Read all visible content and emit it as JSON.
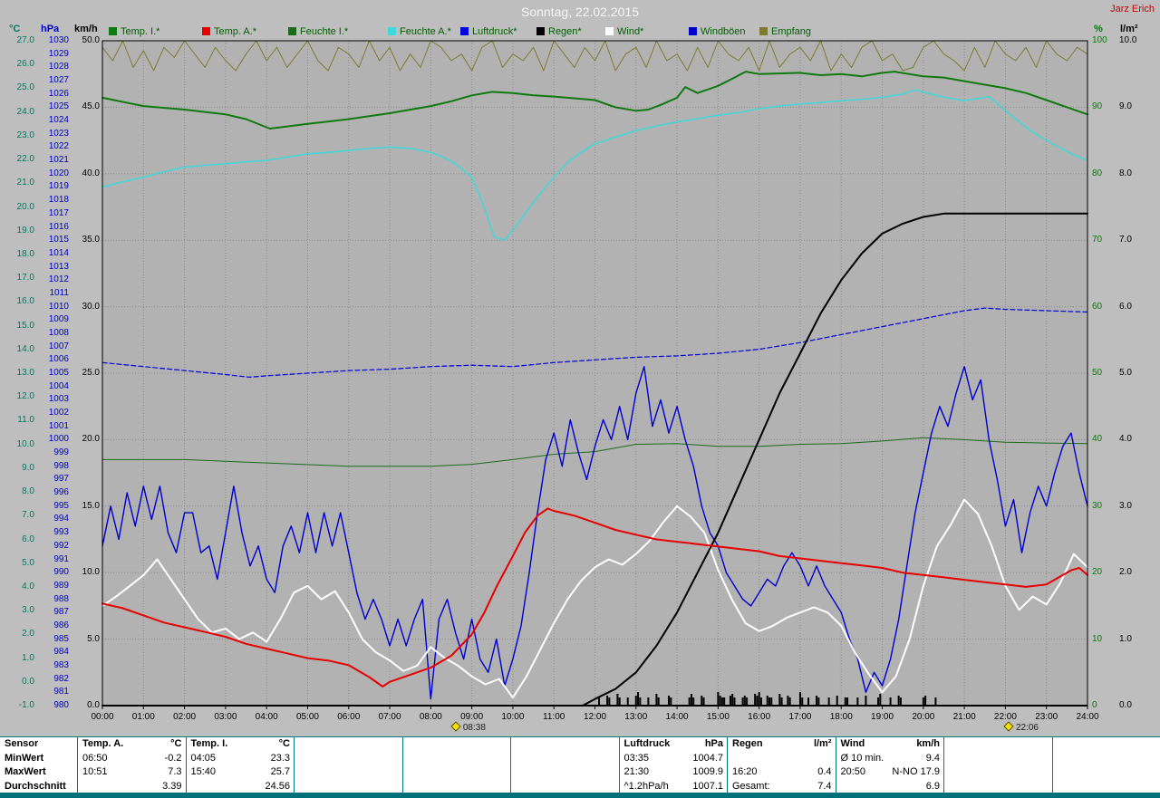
{
  "window": {
    "title": "Sonntag, 22.02.2015",
    "user": "Jarz Erich"
  },
  "accent_colors": {
    "table_border": "#007a7a",
    "bottom_bar": "#00707a",
    "title_text": "#f6f6f6",
    "user_text": "#c40000",
    "plot_background": "#b2b2b2",
    "page_background": "#bebebe"
  },
  "chart_data": {
    "type": "line",
    "title": "Sonntag, 22.02.2015",
    "x_axis": {
      "unit": "hh:mm",
      "range_hours": [
        0,
        24
      ],
      "tick_labels": [
        "00:00",
        "01:00",
        "02:00",
        "03:00",
        "04:00",
        "05:00",
        "06:00",
        "07:00",
        "08:00",
        "09:00",
        "10:00",
        "11:00",
        "12:00",
        "13:00",
        "14:00",
        "15:00",
        "16:00",
        "17:00",
        "18:00",
        "19:00",
        "20:00",
        "21:00",
        "22:00",
        "23:00",
        "24:00"
      ],
      "markers": [
        {
          "label": "08:38",
          "t": 8.63
        },
        {
          "label": "22:06",
          "t": 22.1
        }
      ]
    },
    "y_axes": [
      {
        "name": "°C",
        "side": "left",
        "min": -1,
        "max": 27,
        "step": 1,
        "decimals": 1,
        "color": "#007a5e"
      },
      {
        "name": "hPa",
        "side": "left",
        "min": 980,
        "max": 1030,
        "step": 1,
        "decimals": 0,
        "color": "#0000cc"
      },
      {
        "name": "km/h",
        "side": "left",
        "min": 0,
        "max": 50,
        "step": 5,
        "decimals": 1,
        "color": "#000000"
      },
      {
        "name": "%",
        "side": "right",
        "min": 0,
        "max": 100,
        "step": 10,
        "decimals": 0,
        "color": "#008000"
      },
      {
        "name": "l/m²",
        "side": "right",
        "min": 0,
        "max": 10,
        "step": 1,
        "decimals": 1,
        "color": "#000000"
      }
    ],
    "series": [
      {
        "key": "temp-i",
        "name": "Temp. I.",
        "legend_label": "Temp. I.*",
        "unit": "°C",
        "axis": "°C",
        "color": "#0f7a0f",
        "width": 2,
        "style": "solid",
        "x": [
          0,
          1,
          2,
          3,
          3.5,
          4.08,
          5,
          6,
          7,
          8,
          8.5,
          9,
          9.5,
          10,
          10.5,
          11,
          12,
          12.5,
          13,
          13.3,
          13.6,
          14,
          14.2,
          14.5,
          15,
          15.4,
          15.67,
          16,
          17,
          17.5,
          18,
          18.5,
          19,
          19.3,
          20,
          20.5,
          21,
          21.5,
          22,
          22.5,
          23,
          23.5,
          24
        ],
        "values": [
          24.6,
          24.25,
          24.1,
          23.9,
          23.7,
          23.3,
          23.5,
          23.7,
          23.95,
          24.25,
          24.45,
          24.7,
          24.85,
          24.8,
          24.7,
          24.65,
          24.5,
          24.2,
          24.05,
          24.1,
          24.3,
          24.6,
          25.05,
          24.8,
          25.1,
          25.45,
          25.7,
          25.6,
          25.65,
          25.55,
          25.6,
          25.5,
          25.65,
          25.7,
          25.5,
          25.45,
          25.3,
          25.15,
          25.0,
          24.8,
          24.5,
          24.2,
          23.9
        ]
      },
      {
        "key": "temp-a",
        "name": "Temp. A.",
        "legend_label": "Temp. A.*",
        "unit": "°C",
        "axis": "°C",
        "color": "#e60000",
        "width": 2,
        "style": "solid",
        "x": [
          0,
          0.5,
          1,
          1.5,
          2,
          2.5,
          3,
          3.5,
          4,
          4.5,
          5,
          5.5,
          6,
          6.5,
          6.83,
          7,
          7.5,
          8,
          8.5,
          9,
          9.3,
          9.6,
          10,
          10.3,
          10.6,
          10.85,
          11,
          11.5,
          12,
          12.5,
          13,
          13.5,
          14,
          14.5,
          15,
          15.5,
          16,
          16.5,
          17,
          17.5,
          18,
          18.5,
          19,
          19.5,
          20,
          20.5,
          21,
          21.5,
          22,
          22.5,
          23,
          23.3,
          23.6,
          23.8,
          24
        ],
        "values": [
          3.3,
          3.1,
          2.8,
          2.5,
          2.3,
          2.1,
          1.9,
          1.6,
          1.4,
          1.2,
          1.0,
          0.9,
          0.7,
          0.2,
          -0.2,
          0.0,
          0.3,
          0.6,
          1.1,
          2.0,
          2.9,
          4.0,
          5.3,
          6.3,
          7.0,
          7.3,
          7.2,
          7.0,
          6.7,
          6.4,
          6.2,
          6.0,
          5.9,
          5.8,
          5.7,
          5.6,
          5.5,
          5.3,
          5.2,
          5.1,
          5.0,
          4.9,
          4.8,
          4.6,
          4.5,
          4.4,
          4.3,
          4.2,
          4.1,
          4.0,
          4.1,
          4.4,
          4.7,
          4.8,
          4.5
        ]
      },
      {
        "key": "feuchte-i",
        "name": "Feuchte I.",
        "legend_label": "Feuchte I.*",
        "unit": "%",
        "axis": "%",
        "color": "#1a6b1a",
        "width": 1,
        "style": "solid",
        "x": [
          0,
          2,
          4,
          6,
          8,
          9,
          10,
          11,
          12,
          13,
          14,
          15,
          16,
          17,
          18,
          19,
          20,
          21,
          22,
          23,
          24
        ],
        "values": [
          37,
          37,
          36.5,
          36,
          36,
          36.3,
          37,
          37.8,
          38.2,
          39.3,
          39.4,
          39,
          39,
          39.3,
          39.4,
          39.8,
          40.3,
          40,
          39.6,
          39.5,
          39.4
        ]
      },
      {
        "key": "feuchte-a",
        "name": "Feuchte A.",
        "legend_label": "Feuchte A.*",
        "unit": "%",
        "axis": "%",
        "color": "#3fd9d9",
        "width": 1.5,
        "style": "solid",
        "x": [
          0,
          0.5,
          1,
          1.5,
          2,
          2.5,
          3,
          3.5,
          4,
          4.5,
          5,
          5.5,
          6,
          6.5,
          7,
          7.5,
          8,
          8.3,
          8.6,
          9,
          9.3,
          9.55,
          9.8,
          10,
          10.3,
          10.6,
          11,
          11.3,
          11.6,
          12,
          12.5,
          13,
          13.5,
          14,
          14.5,
          15,
          15.5,
          16,
          16.5,
          17,
          17.5,
          18,
          18.5,
          19,
          19.5,
          19.8,
          20,
          20.5,
          21,
          21.3,
          21.6,
          22,
          22.3,
          22.6,
          23,
          23.3,
          23.6,
          24
        ],
        "values": [
          78,
          78.8,
          79.5,
          80.3,
          81,
          81.3,
          81.5,
          81.8,
          82,
          82.5,
          83,
          83.2,
          83.5,
          83.8,
          84,
          83.8,
          83.2,
          82.5,
          81.5,
          79.5,
          75,
          70.5,
          70,
          71.5,
          74,
          76.5,
          79.5,
          81.5,
          83,
          84.5,
          85.5,
          86.5,
          87.2,
          87.8,
          88.3,
          88.8,
          89.2,
          89.8,
          90.2,
          90.5,
          90.7,
          91,
          91.2,
          91.5,
          92,
          92.6,
          92.3,
          91.5,
          91,
          91.3,
          91.6,
          89.5,
          88,
          86.5,
          85,
          84,
          83,
          82
        ]
      },
      {
        "key": "luftdruck",
        "name": "Luftdruck",
        "legend_label": "Luftdruck*",
        "unit": "hPa",
        "axis": "hPa",
        "color": "#0000e0",
        "width": 1.2,
        "style": "dashed",
        "x": [
          0,
          1,
          2,
          3,
          3.58,
          4,
          5,
          6,
          7,
          8,
          9,
          10,
          11,
          12,
          13,
          14,
          15,
          16,
          17,
          18,
          19,
          20,
          21,
          21.5,
          22,
          23,
          24
        ],
        "values": [
          1005.8,
          1005.5,
          1005.2,
          1004.9,
          1004.7,
          1004.8,
          1005.0,
          1005.2,
          1005.3,
          1005.5,
          1005.6,
          1005.5,
          1005.8,
          1006.0,
          1006.2,
          1006.3,
          1006.5,
          1006.8,
          1007.3,
          1007.9,
          1008.5,
          1009.1,
          1009.7,
          1009.9,
          1009.8,
          1009.7,
          1009.6
        ]
      },
      {
        "key": "regen",
        "name": "Regen",
        "legend_label": "Regen*",
        "unit": "l/m²",
        "axis": "l/m²",
        "color": "#000000",
        "width": 2,
        "style": "solid",
        "x": [
          0,
          11.7,
          12,
          12.5,
          13,
          13.5,
          14,
          14.5,
          15,
          15.5,
          16,
          16.5,
          17,
          17.5,
          18,
          18.5,
          19,
          19.5,
          20,
          20.5,
          21,
          22,
          23,
          24
        ],
        "values": [
          0,
          0,
          0.1,
          0.25,
          0.5,
          0.9,
          1.4,
          2.0,
          2.6,
          3.3,
          4.0,
          4.7,
          5.3,
          5.9,
          6.4,
          6.8,
          7.1,
          7.25,
          7.35,
          7.4,
          7.4,
          7.4,
          7.4,
          7.4
        ]
      },
      {
        "key": "wind",
        "name": "Wind",
        "legend_label": "Wind*",
        "unit": "km/h",
        "axis": "km/h",
        "color": "#ffffff",
        "width": 2,
        "style": "solid",
        "values": [
          7.5,
          8.2,
          9,
          9.8,
          11,
          9.5,
          8,
          6.5,
          5.5,
          5.8,
          5,
          5.5,
          4.8,
          6.5,
          8.5,
          9,
          8,
          8.6,
          7,
          5,
          4,
          3.4,
          2.6,
          3,
          4.4,
          3.6,
          3,
          2.2,
          1.6,
          2,
          0.6,
          2.2,
          4.2,
          6.2,
          8,
          9.4,
          10.4,
          11,
          10.6,
          11.4,
          12.4,
          13.8,
          15,
          14.2,
          13,
          10.2,
          8,
          6.2,
          5.6,
          6,
          6.6,
          7,
          7.4,
          7,
          6,
          4,
          2.4,
          1,
          2.2,
          5,
          9,
          12,
          13.6,
          15.5,
          14.4,
          12,
          9,
          7.2,
          8.2,
          7.6,
          9.2,
          11.4,
          10.4
        ]
      },
      {
        "key": "windboeen",
        "name": "Windböen",
        "legend_label": "Windböen",
        "unit": "km/h",
        "axis": "km/h",
        "color": "#0000cc",
        "width": 1.4,
        "style": "solid",
        "values": [
          12,
          15,
          12.5,
          16,
          13.5,
          16.5,
          14,
          16.5,
          13,
          11.5,
          14.5,
          14.5,
          11.5,
          12,
          9.5,
          13,
          16.5,
          13,
          10.5,
          12,
          9.5,
          8.5,
          12,
          13.5,
          11.5,
          14.5,
          11.5,
          14.5,
          12,
          14.5,
          11.5,
          8.5,
          6.5,
          8,
          6.5,
          4.5,
          6.5,
          4.5,
          6.5,
          8,
          0.5,
          6.5,
          8,
          5.5,
          3.5,
          6.5,
          3.5,
          2.5,
          5,
          1.5,
          3.5,
          6,
          10,
          14.5,
          18.5,
          20.5,
          18,
          21.5,
          19,
          17,
          19.5,
          21.5,
          20,
          22.5,
          20,
          23.5,
          25.5,
          21,
          23,
          20.5,
          22.5,
          20,
          18,
          15,
          13,
          12,
          10,
          9,
          8,
          7.5,
          8.5,
          9.5,
          9,
          10.5,
          11.5,
          10.5,
          9,
          10.5,
          9,
          8,
          7,
          5,
          3.5,
          1,
          2.5,
          1.5,
          3.5,
          6.5,
          10.5,
          14.5,
          17.5,
          20.5,
          22.5,
          21,
          23.5,
          25.5,
          23,
          24.5,
          20,
          17,
          13.5,
          15.5,
          11.5,
          14.5,
          16.5,
          15,
          17.5,
          19.5,
          20.5,
          17.5,
          15
        ]
      },
      {
        "key": "empfang",
        "name": "Empfang",
        "legend_label": "Empfang",
        "unit": "%",
        "axis": "%",
        "color": "#7c7c32",
        "width": 1,
        "style": "solid",
        "values": [
          99,
          97,
          100,
          96,
          98.5,
          95.5,
          99,
          97.5,
          100,
          98,
          96,
          99,
          97,
          95.5,
          98,
          100,
          97,
          99,
          96,
          98,
          100,
          97,
          95.5,
          99,
          98,
          96,
          100,
          97,
          99,
          95.5,
          98,
          96,
          100,
          99,
          97,
          98,
          95.5,
          99,
          100,
          96,
          98,
          97,
          99,
          95.5,
          100,
          98,
          96,
          99,
          97,
          100,
          95.5,
          98,
          99,
          96,
          100,
          97,
          98,
          95.5,
          99,
          96,
          100,
          98,
          97,
          99,
          95.5,
          100,
          96,
          98,
          99,
          97,
          100,
          95.5,
          98,
          96,
          99,
          100,
          97,
          98,
          95.5,
          96,
          99,
          100,
          98,
          97,
          95.5,
          99,
          96,
          100,
          98,
          97,
          99,
          96,
          100,
          98,
          97,
          99,
          98
        ]
      }
    ],
    "rain_ticks": {
      "color": "#000000",
      "times": [
        12.1,
        12.3,
        12.35,
        12.55,
        12.6,
        12.8,
        13.0,
        13.05,
        13.1,
        13.3,
        13.5,
        13.55,
        13.8,
        13.85,
        14.3,
        14.35,
        14.4,
        14.6,
        14.65,
        15.0,
        15.05,
        15.1,
        15.15,
        15.3,
        15.35,
        15.4,
        15.6,
        15.65,
        15.7,
        15.9,
        15.95,
        16.0,
        16.05,
        16.2,
        16.25,
        16.3,
        16.5,
        16.55,
        16.7,
        16.75,
        17.0,
        17.05,
        17.2,
        17.4,
        17.45,
        17.7,
        17.9,
        18.1,
        18.15,
        18.4,
        18.6,
        18.9,
        18.95,
        19.2,
        19.4,
        19.45,
        20.0,
        20.05,
        20.3
      ],
      "heights": [
        8,
        10,
        8,
        12,
        8,
        8,
        10,
        14,
        8,
        8,
        12,
        8,
        10,
        8,
        8,
        12,
        8,
        10,
        8,
        14,
        10,
        8,
        8,
        10,
        12,
        8,
        8,
        10,
        8,
        12,
        10,
        14,
        8,
        10,
        8,
        8,
        12,
        8,
        10,
        8,
        14,
        8,
        8,
        10,
        8,
        8,
        10,
        8,
        8,
        8,
        10,
        8,
        12,
        8,
        10,
        8,
        8,
        10,
        8
      ]
    }
  },
  "summary_table": {
    "header_row_label": "Sensor",
    "row_labels": [
      "MinWert",
      "MaxWert",
      "Durchschnitt"
    ],
    "groups": [
      {
        "name": "Temp. A.",
        "unit": "°C",
        "min": [
          "06:50",
          "-0.2"
        ],
        "max": [
          "10:51",
          "7.3"
        ],
        "avg": [
          "",
          "3.39"
        ]
      },
      {
        "name": "Temp. I.",
        "unit": "°C",
        "min": [
          "04:05",
          "23.3"
        ],
        "max": [
          "15:40",
          "25.7"
        ],
        "avg": [
          "",
          "24.56"
        ]
      },
      {
        "name": "",
        "unit": "",
        "min": [
          "",
          ""
        ],
        "max": [
          "",
          ""
        ],
        "avg": [
          "",
          ""
        ]
      },
      {
        "name": "",
        "unit": "",
        "min": [
          "",
          ""
        ],
        "max": [
          "",
          ""
        ],
        "avg": [
          "",
          ""
        ]
      },
      {
        "name": "",
        "unit": "",
        "min": [
          "",
          ""
        ],
        "max": [
          "",
          ""
        ],
        "avg": [
          "",
          ""
        ]
      },
      {
        "name": "Luftdruck",
        "unit": "hPa",
        "min": [
          "03:35",
          "1004.7"
        ],
        "max": [
          "21:30",
          "1009.9"
        ],
        "avg": [
          "^1.2hPa/h",
          "1007.1"
        ]
      },
      {
        "name": "Regen",
        "unit": "l/m²",
        "min": [
          "",
          ""
        ],
        "max": [
          "16:20",
          "0.4"
        ],
        "avg": [
          "Gesamt:",
          "7.4"
        ]
      },
      {
        "name": "Wind",
        "unit": "km/h",
        "min": [
          "Ø 10 min.",
          "9.4"
        ],
        "max": [
          "20:50",
          "N-NO 17.9"
        ],
        "avg": [
          "",
          "6.9"
        ]
      },
      {
        "name": "",
        "unit": "",
        "min": [
          "",
          ""
        ],
        "max": [
          "",
          ""
        ],
        "avg": [
          "",
          ""
        ]
      },
      {
        "name": "",
        "unit": "",
        "min": [
          "",
          ""
        ],
        "max": [
          "",
          ""
        ],
        "avg": [
          "",
          ""
        ]
      }
    ]
  }
}
